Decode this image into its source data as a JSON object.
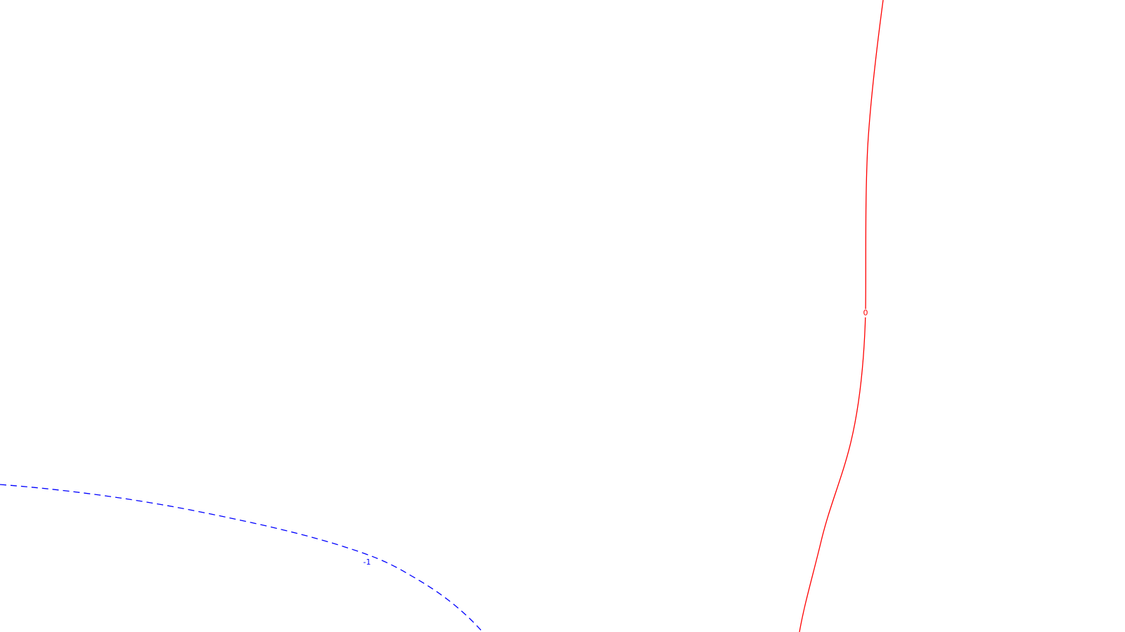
{
  "chart_data": {
    "type": "line",
    "grid": false,
    "contours": [
      {
        "label": "0",
        "color": "#ff0000",
        "style": "solid"
      },
      {
        "label": "-1",
        "color": "#0000ff",
        "style": "dashed"
      }
    ]
  }
}
